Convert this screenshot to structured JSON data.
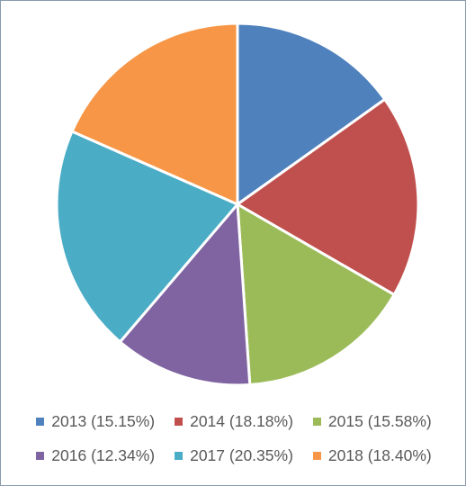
{
  "chart_data": {
    "type": "pie",
    "categories": [
      "2013",
      "2014",
      "2015",
      "2016",
      "2017",
      "2018"
    ],
    "values": [
      15.15,
      18.18,
      15.58,
      12.34,
      20.35,
      18.4
    ],
    "legend_labels": [
      "2013 (15.15%)",
      "2014 (18.18%)",
      "2015 (15.58%)",
      "2016 (12.34%)",
      "2017 (20.35%)",
      "2018 (18.40%)"
    ],
    "colors": [
      "#4f81bd",
      "#c0504d",
      "#9bbb59",
      "#8064a2",
      "#4bacc6",
      "#f79646"
    ],
    "legend_position": "bottom",
    "start_angle": "12 o'clock",
    "direction": "clockwise"
  }
}
